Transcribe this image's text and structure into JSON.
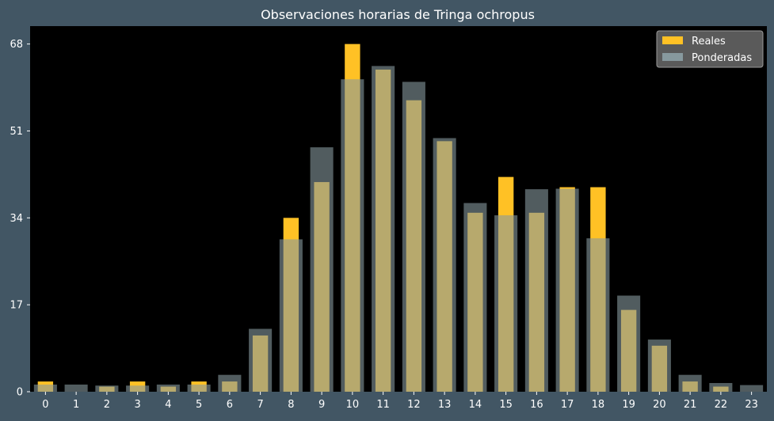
{
  "chart_data": {
    "type": "bar",
    "title": "Observaciones horarias de Tringa ochropus",
    "xlabel": "",
    "ylabel": "",
    "categories": [
      "0",
      "1",
      "2",
      "3",
      "4",
      "5",
      "6",
      "7",
      "8",
      "9",
      "10",
      "11",
      "12",
      "13",
      "14",
      "15",
      "16",
      "17",
      "18",
      "19",
      "20",
      "21",
      "22",
      "23"
    ],
    "yticks": [
      0,
      17,
      34,
      51,
      68
    ],
    "ylim": [
      0,
      71.5
    ],
    "grid": false,
    "legend_position": "top-right",
    "series": [
      {
        "name": "Reales",
        "color": "#ffc125",
        "values": [
          2,
          0,
          1,
          2,
          1,
          2,
          2,
          11,
          34,
          41,
          68,
          63,
          57,
          49,
          35,
          42,
          35,
          40,
          40,
          16,
          9,
          2,
          1,
          0
        ]
      },
      {
        "name": "Ponderadas",
        "color": "#87999e",
        "values": [
          1.4,
          1.4,
          1.2,
          1.2,
          1.4,
          1.4,
          3.3,
          12.3,
          29.8,
          47.8,
          61.1,
          63.7,
          60.6,
          49.6,
          36.9,
          34.5,
          39.6,
          39.7,
          30.0,
          18.8,
          10.2,
          3.3,
          1.7,
          1.3
        ]
      }
    ]
  }
}
